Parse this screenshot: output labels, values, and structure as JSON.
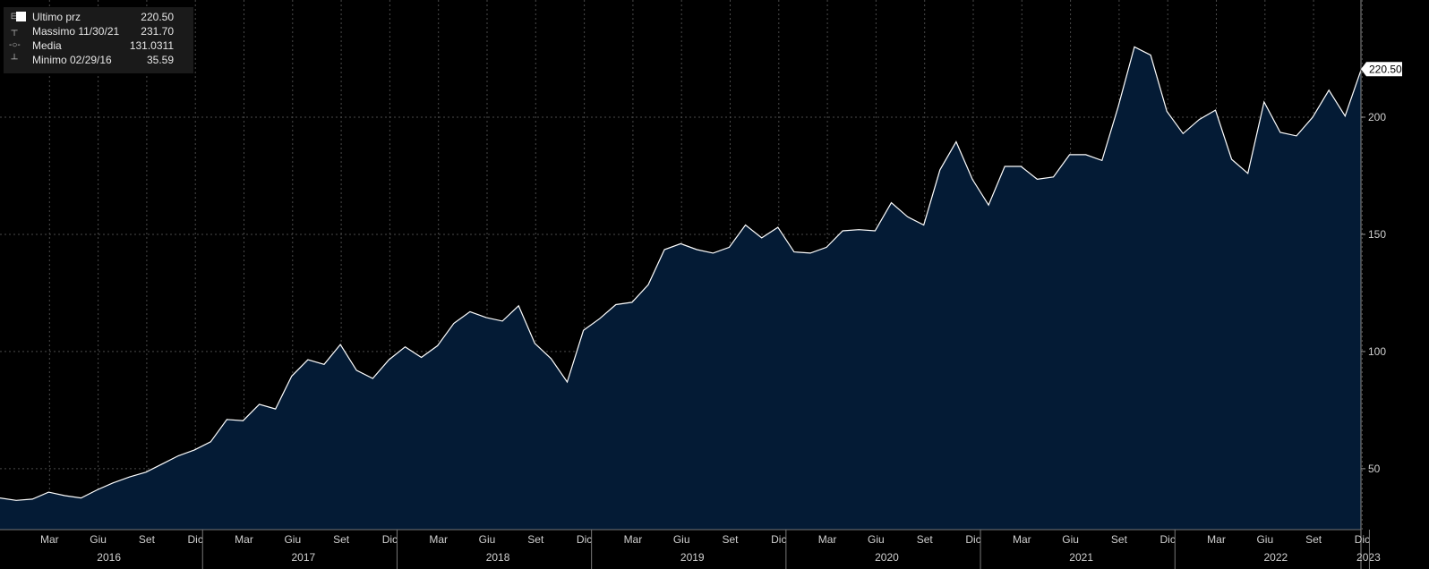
{
  "legend": {
    "items": [
      {
        "label": "Ultimo prz",
        "value": "220.50",
        "icon": "white-square-icon"
      },
      {
        "label": "Massimo 11/30/21",
        "value": "231.70",
        "icon": "max-marker-icon"
      },
      {
        "label": "Media",
        "value": "131.0311",
        "icon": "average-marker-icon"
      },
      {
        "label": "Minimo 02/29/16",
        "value": "35.59",
        "icon": "min-marker-icon"
      }
    ]
  },
  "price_tag": "220.50",
  "chart_data": {
    "type": "area",
    "title": "",
    "xlabel": "",
    "ylabel": "",
    "ylim": [
      24,
      250
    ],
    "grid": true,
    "colors": {
      "background": "#000000",
      "fill": "#041b35",
      "line": "#ffffff",
      "grid": "#4a4a4a",
      "axis_text": "#d0d0d0"
    },
    "y_ticks": [
      50,
      100,
      150,
      200
    ],
    "x_tick_labels": [
      "Mar",
      "Giu",
      "Set",
      "Dic",
      "Mar",
      "Giu",
      "Set",
      "Dic",
      "Mar",
      "Giu",
      "Set",
      "Dic",
      "Mar",
      "Giu",
      "Set",
      "Dic",
      "Mar",
      "Giu",
      "Set",
      "Dic",
      "Mar",
      "Giu",
      "Set",
      "Dic",
      "Mar",
      "Giu",
      "Set",
      "Dic"
    ],
    "year_labels": [
      "2016",
      "2017",
      "2018",
      "2019",
      "2020",
      "2021",
      "2022",
      "2023"
    ],
    "x_start": "2015-12",
    "values": [
      37.5,
      36.5,
      37.0,
      40.0,
      38.5,
      37.5,
      41.0,
      44.0,
      46.5,
      48.5,
      52.0,
      55.5,
      58.0,
      61.5,
      71.0,
      70.5,
      77.5,
      75.5,
      89.5,
      96.5,
      94.5,
      103.0,
      92.0,
      88.5,
      96.5,
      102.0,
      97.5,
      102.5,
      112.0,
      117.0,
      114.5,
      113.0,
      119.5,
      103.5,
      97.0,
      87.0,
      109.0,
      114.0,
      120.0,
      121.0,
      128.5,
      143.5,
      146.0,
      143.5,
      142.0,
      144.5,
      154.0,
      148.5,
      153.0,
      142.5,
      142.0,
      144.5,
      151.5,
      152.0,
      151.5,
      163.5,
      157.5,
      154.0,
      177.5,
      189.5,
      173.5,
      162.5,
      179.0,
      179.0,
      173.5,
      174.5,
      184.0,
      184.0,
      181.5,
      204.5,
      230.0,
      226.5,
      202.5,
      193.0,
      199.0,
      203.0,
      182.0,
      176.0,
      206.5,
      193.5,
      192.0,
      200.0,
      211.5,
      200.5,
      220.5
    ],
    "last_value": 220.5
  }
}
